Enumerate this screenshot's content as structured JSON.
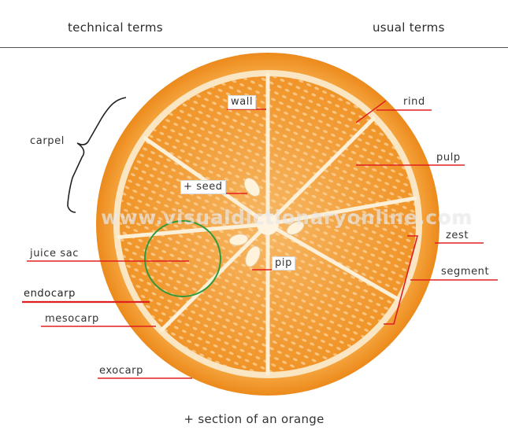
{
  "header": {
    "technical_terms": "technical terms",
    "usual_terms": "usual terms"
  },
  "labels": {
    "carpel": "carpel",
    "wall": "wall",
    "rind": "rind",
    "pulp": "pulp",
    "seed": "+ seed",
    "zest": "zest",
    "segment": "segment",
    "juice_sac": "juice sac",
    "pip": "pip",
    "endocarp": "endocarp",
    "mesocarp": "mesocarp",
    "exocarp": "exocarp"
  },
  "watermark": "www.visualdictionaryonline.com",
  "caption": "+ section of an orange",
  "colors": {
    "rind": "#f49a2a",
    "pith": "#fbe3bf",
    "pulp": "#f4a23a",
    "leader_line": "#e02020",
    "highlight_circle": "#2e9a3a"
  }
}
